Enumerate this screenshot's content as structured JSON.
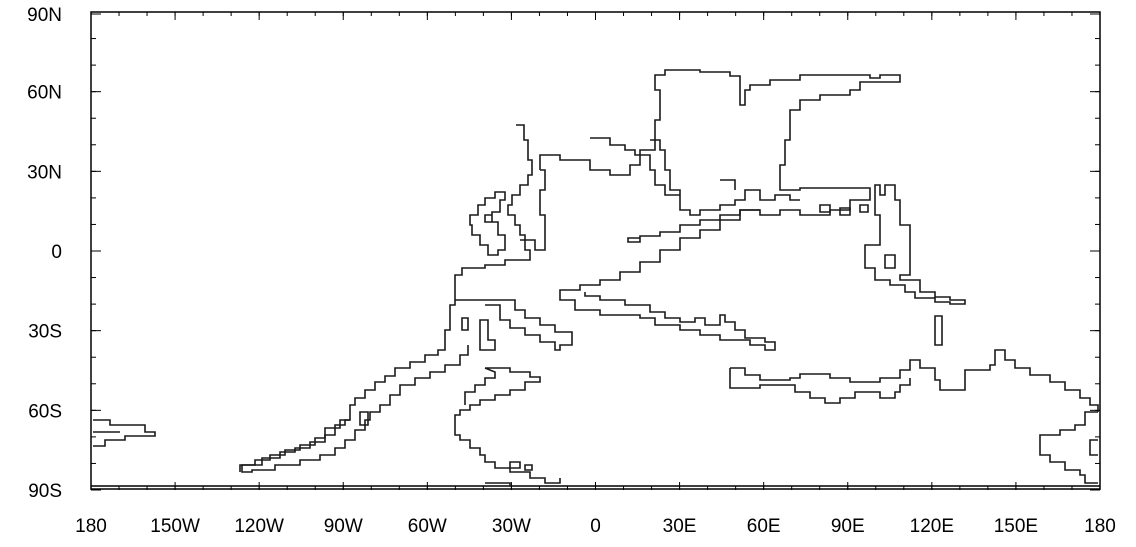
{
  "map": {
    "y_tick_labels": [
      "90N",
      "60N",
      "30N",
      "0",
      "30S",
      "60S",
      "90S"
    ],
    "x_tick_labels": [
      "180",
      "150W",
      "120W",
      "90W",
      "60W",
      "30W",
      "0",
      "30E",
      "60E",
      "90E",
      "120E",
      "150E",
      "180"
    ],
    "line_color": "#1a1a1a",
    "frame_color": "#000000"
  }
}
